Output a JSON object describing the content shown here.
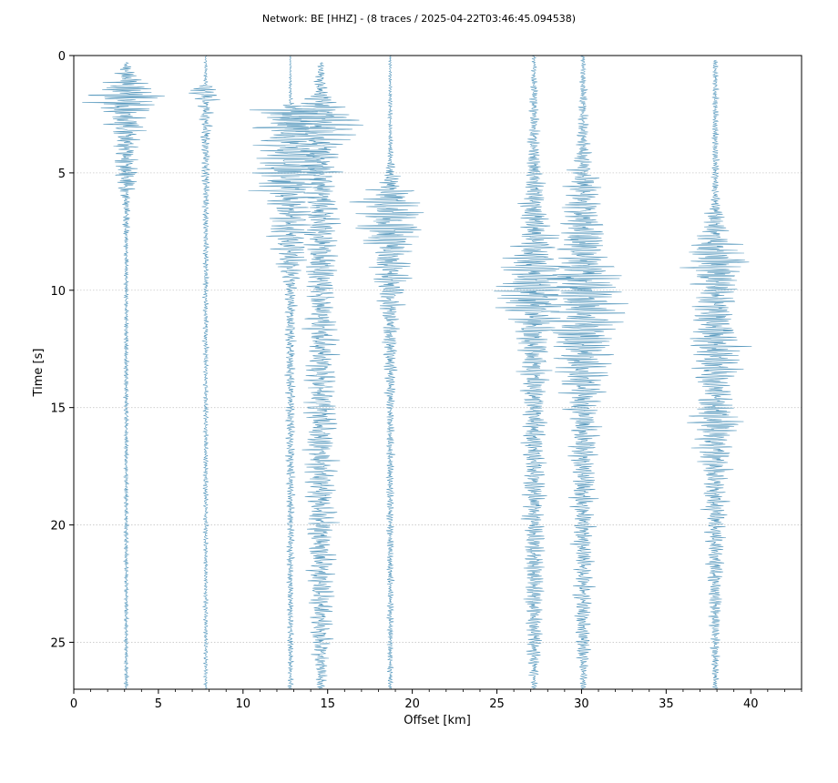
{
  "chart_data": {
    "type": "line",
    "title": "Network: BE [HHZ] - (8 traces / 2025-04-22T03:46:45.094538)",
    "xlabel": "Offset [km]",
    "ylabel": "Time [s]",
    "xlim": [
      0,
      43
    ],
    "ylim": [
      27,
      0
    ],
    "y_inverted": true,
    "xticks": [
      0,
      5,
      10,
      15,
      20,
      25,
      30,
      35,
      40
    ],
    "yticks": [
      0,
      5,
      10,
      15,
      20,
      25
    ],
    "x_minor_step": 1,
    "grid": "horizontal-dotted",
    "trace_color": "#5b9bbf",
    "time_step": 0.02,
    "series": [
      {
        "offset": 3.1,
        "envelope": [
          [
            0.3,
            0.15
          ],
          [
            1.0,
            1.2
          ],
          [
            1.6,
            3.2
          ],
          [
            2.4,
            2.2
          ],
          [
            3.5,
            0.9
          ],
          [
            4.5,
            0.9
          ],
          [
            5.1,
            1.2
          ],
          [
            6.0,
            0.35
          ],
          [
            8.0,
            0.18
          ],
          [
            27.0,
            0.15
          ]
        ]
      },
      {
        "offset": 7.8,
        "envelope": [
          [
            0.0,
            0.05
          ],
          [
            1.2,
            0.2
          ],
          [
            1.5,
            1.8
          ],
          [
            2.0,
            0.5
          ],
          [
            3.5,
            0.4
          ],
          [
            5.0,
            0.3
          ],
          [
            8.0,
            0.2
          ],
          [
            27.0,
            0.15
          ]
        ]
      },
      {
        "offset": 12.8,
        "envelope": [
          [
            0.0,
            0.05
          ],
          [
            2.0,
            0.15
          ],
          [
            2.4,
            3.0
          ],
          [
            3.5,
            2.2
          ],
          [
            5.0,
            3.2
          ],
          [
            6.5,
            1.5
          ],
          [
            7.6,
            1.8
          ],
          [
            10.0,
            0.4
          ],
          [
            27.0,
            0.2
          ]
        ]
      },
      {
        "offset": 14.6,
        "envelope": [
          [
            0.3,
            0.2
          ],
          [
            1.5,
            0.6
          ],
          [
            2.8,
            3.2
          ],
          [
            4.0,
            1.5
          ],
          [
            5.5,
            1.2
          ],
          [
            7.5,
            1.3
          ],
          [
            10.0,
            1.1
          ],
          [
            15.0,
            1.2
          ],
          [
            20.0,
            1.1
          ],
          [
            25.0,
            0.8
          ],
          [
            27.0,
            0.3
          ]
        ]
      },
      {
        "offset": 18.7,
        "envelope": [
          [
            0.0,
            0.1
          ],
          [
            4.5,
            0.2
          ],
          [
            5.5,
            0.9
          ],
          [
            6.0,
            2.4
          ],
          [
            7.3,
            2.8
          ],
          [
            8.5,
            1.4
          ],
          [
            10.0,
            1.2
          ],
          [
            11.0,
            0.7
          ],
          [
            15.0,
            0.3
          ],
          [
            27.0,
            0.2
          ]
        ]
      },
      {
        "offset": 27.2,
        "envelope": [
          [
            0.0,
            0.15
          ],
          [
            4.0,
            0.5
          ],
          [
            6.0,
            0.9
          ],
          [
            8.5,
            1.8
          ],
          [
            10.0,
            3.2
          ],
          [
            11.5,
            1.5
          ],
          [
            15.0,
            0.9
          ],
          [
            20.0,
            0.8
          ],
          [
            25.0,
            0.6
          ],
          [
            27.0,
            0.2
          ]
        ]
      },
      {
        "offset": 30.1,
        "envelope": [
          [
            0.0,
            0.15
          ],
          [
            4.0,
            0.5
          ],
          [
            5.5,
            1.2
          ],
          [
            8.0,
            1.8
          ],
          [
            10.0,
            3.0
          ],
          [
            11.5,
            3.0
          ],
          [
            13.5,
            2.0
          ],
          [
            15.0,
            1.2
          ],
          [
            20.0,
            0.8
          ],
          [
            25.0,
            0.6
          ],
          [
            27.0,
            0.2
          ]
        ]
      },
      {
        "offset": 37.9,
        "envelope": [
          [
            0.2,
            0.2
          ],
          [
            6.0,
            0.3
          ],
          [
            7.5,
            1.0
          ],
          [
            8.8,
            3.0
          ],
          [
            10.0,
            1.5
          ],
          [
            12.3,
            2.2
          ],
          [
            14.5,
            1.2
          ],
          [
            15.5,
            2.0
          ],
          [
            18.0,
            1.0
          ],
          [
            22.0,
            0.6
          ],
          [
            27.0,
            0.2
          ]
        ]
      }
    ]
  }
}
